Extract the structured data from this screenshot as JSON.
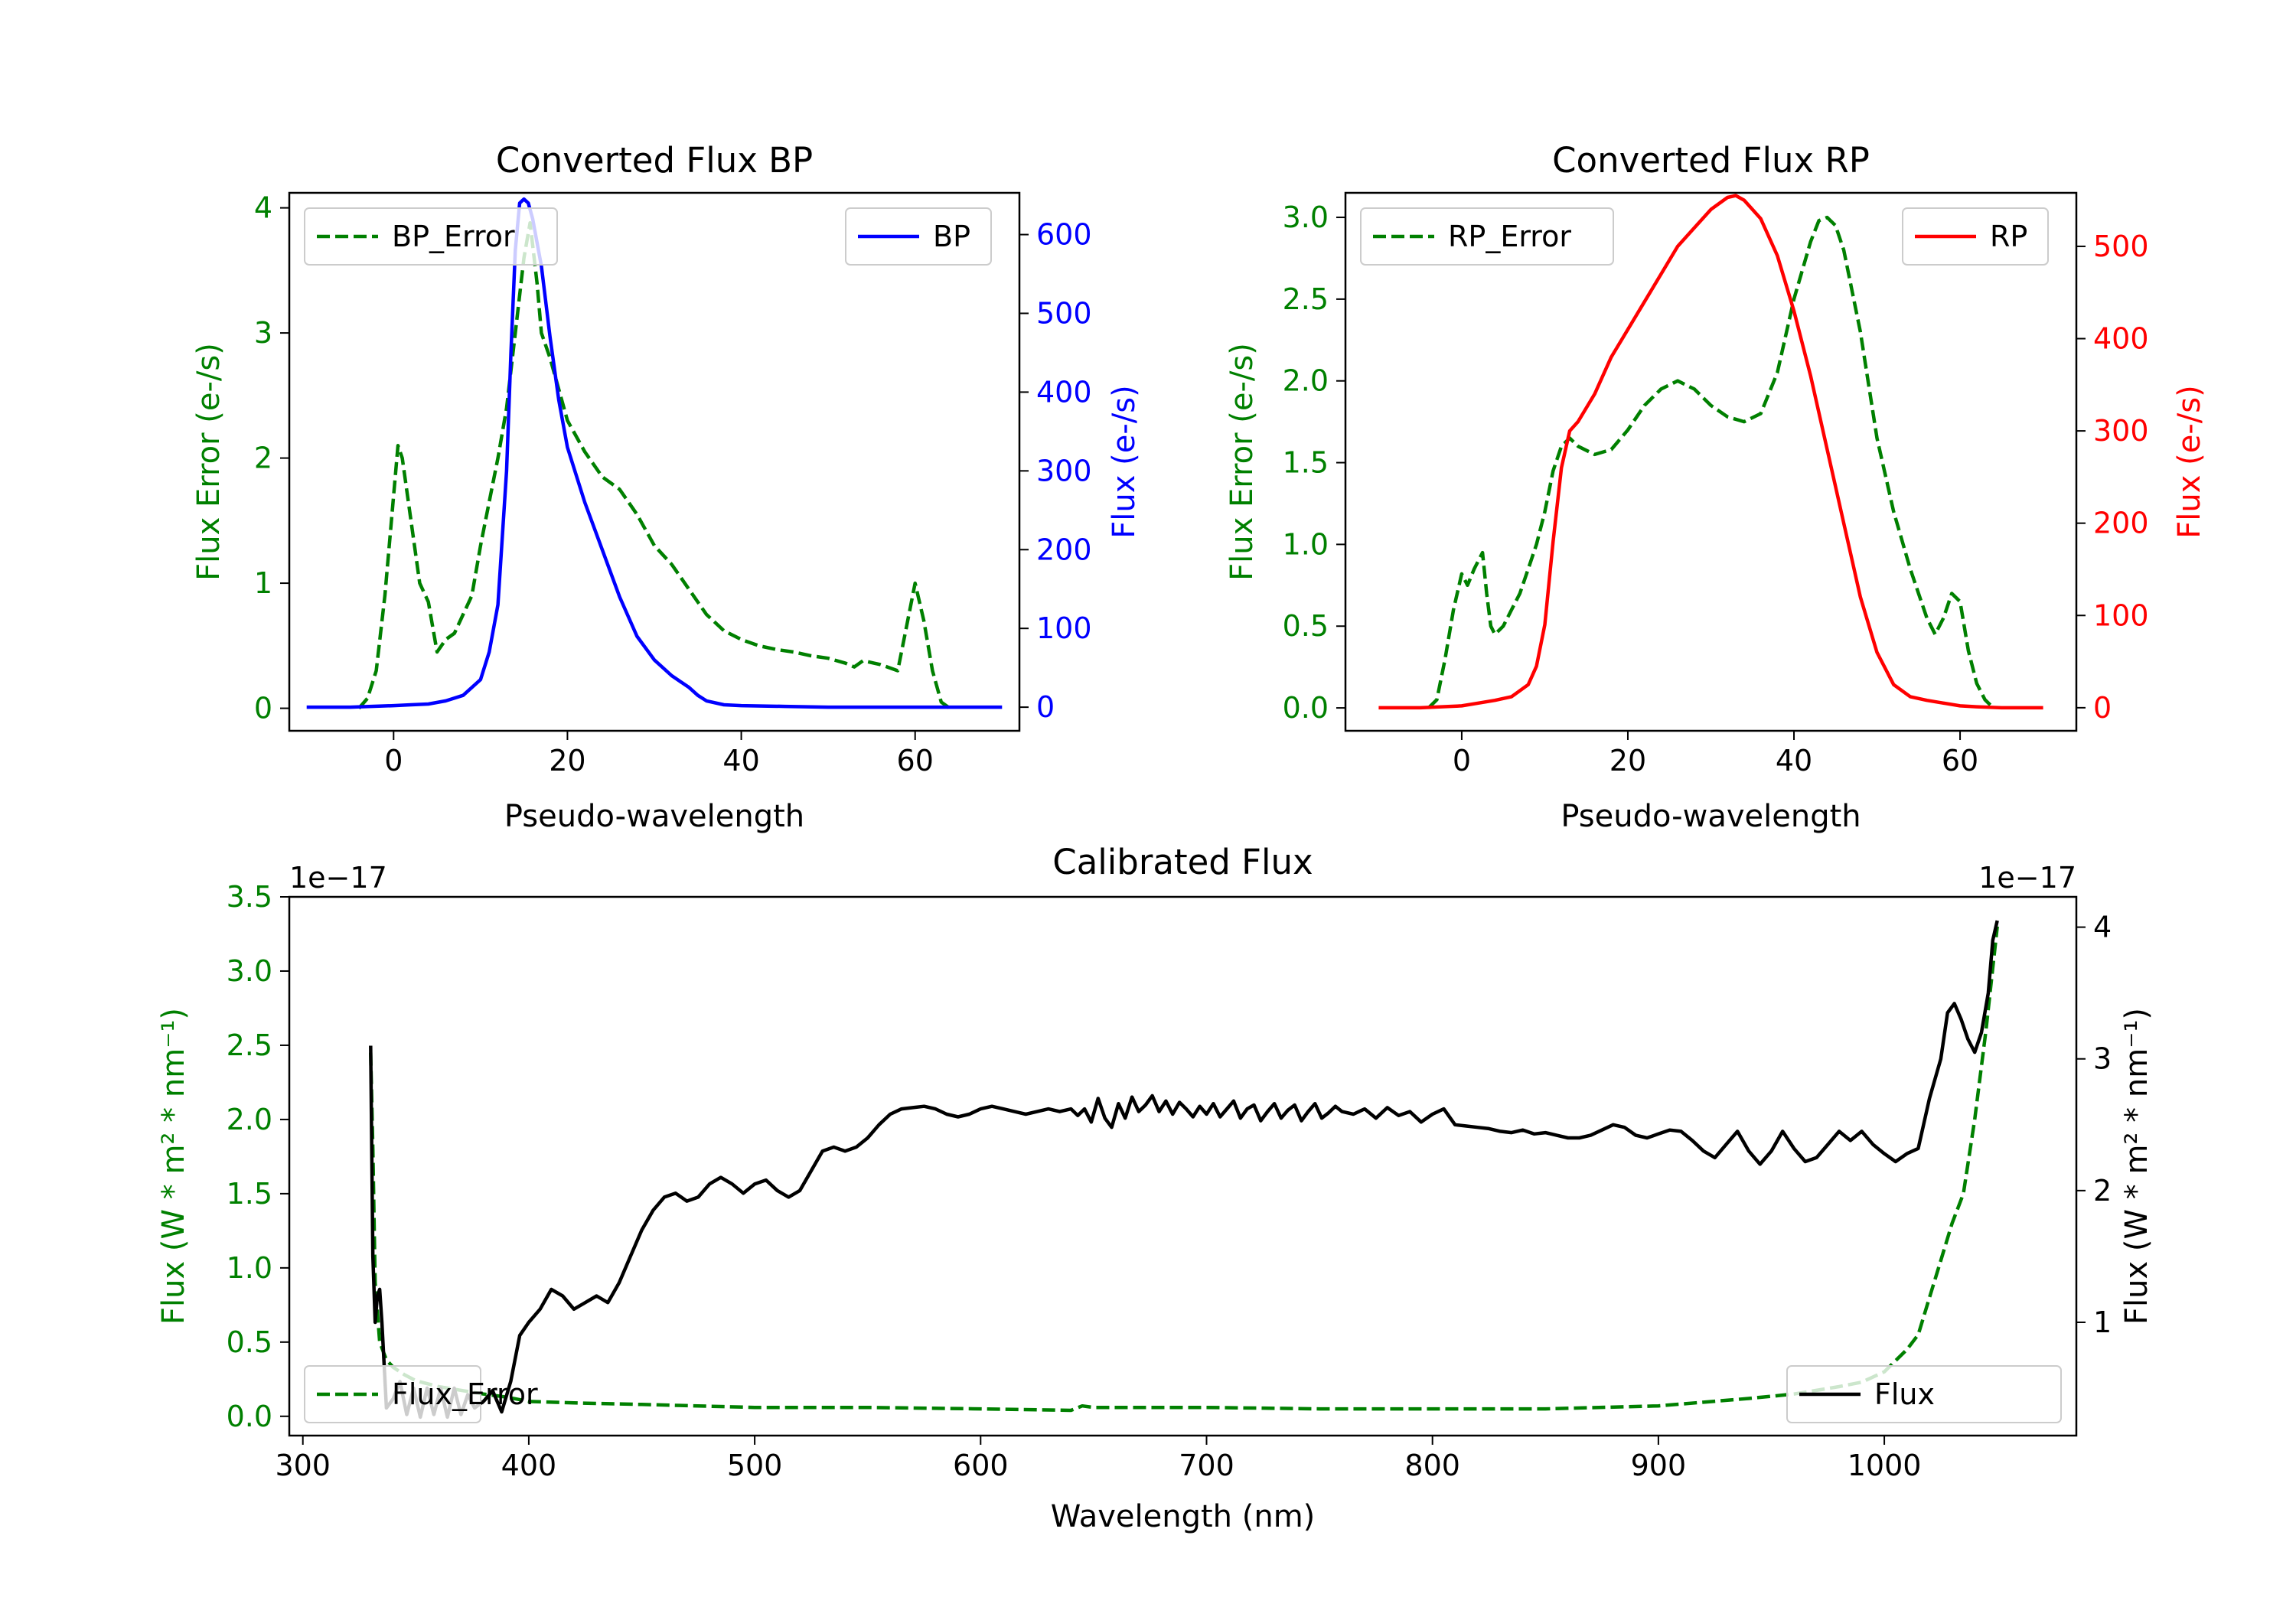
{
  "chart_data": [
    {
      "type": "line",
      "title": "Converted Flux BP",
      "xlabel": "Pseudo-wavelength",
      "ylabel_left": "Flux Error (e-/s)",
      "ylabel_right": "Flux (e-/s)",
      "xlim": [
        -12,
        72
      ],
      "ylim_left": [
        -0.18,
        4.12
      ],
      "ylim_right": [
        -30,
        653
      ],
      "xticks": [
        "0",
        "20",
        "40",
        "60"
      ],
      "yticks_left": [
        "0",
        "1",
        "2",
        "3",
        "4"
      ],
      "yticks_right": [
        "0",
        "100",
        "200",
        "300",
        "400",
        "500",
        "600"
      ],
      "series": [
        {
          "name": "BP_Error",
          "axis": "left",
          "style": "dashed",
          "color": "#008000",
          "x": [
            -4,
            -3,
            -2,
            -1,
            0,
            0.5,
            1,
            2,
            3,
            4,
            5,
            6,
            7,
            8,
            9,
            10,
            11,
            12,
            13,
            14,
            15,
            15.7,
            16.5,
            17,
            18,
            19,
            20,
            22,
            24,
            26,
            28,
            30,
            32,
            34,
            36,
            38,
            40,
            42,
            44,
            46,
            48,
            50,
            52,
            53,
            54,
            56,
            58,
            59,
            60,
            61,
            62,
            63,
            64
          ],
          "y": [
            0,
            0.08,
            0.3,
            0.9,
            1.7,
            2.1,
            2.0,
            1.5,
            1.0,
            0.85,
            0.45,
            0.55,
            0.6,
            0.75,
            0.9,
            1.3,
            1.65,
            2.0,
            2.4,
            3.0,
            3.6,
            3.88,
            3.4,
            3.0,
            2.8,
            2.55,
            2.3,
            2.05,
            1.85,
            1.75,
            1.55,
            1.3,
            1.15,
            0.95,
            0.75,
            0.62,
            0.55,
            0.5,
            0.47,
            0.45,
            0.42,
            0.4,
            0.36,
            0.33,
            0.38,
            0.35,
            0.3,
            0.65,
            1.0,
            0.7,
            0.3,
            0.05,
            0
          ]
        },
        {
          "name": "BP",
          "axis": "right",
          "style": "solid",
          "color": "#0000ff",
          "x": [
            -10,
            -5,
            0,
            2,
            4,
            6,
            8,
            10,
            11,
            12,
            13,
            13.5,
            14,
            14.5,
            15,
            15.5,
            16,
            17,
            18,
            19,
            20,
            22,
            24,
            26,
            28,
            30,
            32,
            34,
            35,
            36,
            38,
            40,
            45,
            50,
            55,
            60,
            65,
            70
          ],
          "y": [
            0,
            0,
            2,
            3,
            4,
            8,
            15,
            35,
            70,
            130,
            300,
            450,
            580,
            640,
            645,
            640,
            620,
            560,
            470,
            390,
            330,
            260,
            200,
            140,
            90,
            60,
            40,
            25,
            15,
            8,
            3,
            2,
            1,
            0,
            0,
            0,
            0,
            0
          ]
        }
      ]
    },
    {
      "type": "line",
      "title": "Converted Flux RP",
      "xlabel": "Pseudo-wavelength",
      "ylabel_left": "Flux Error (e-/s)",
      "ylabel_right": "Flux (e-/s)",
      "xlim": [
        -14,
        74
      ],
      "ylim_left": [
        -0.14,
        3.15
      ],
      "ylim_right": [
        -25,
        558
      ],
      "xticks": [
        "0",
        "20",
        "40",
        "60"
      ],
      "yticks_left": [
        "0.0",
        "0.5",
        "1.0",
        "1.5",
        "2.0",
        "2.5",
        "3.0"
      ],
      "yticks_right": [
        "0",
        "100",
        "200",
        "300",
        "400",
        "500"
      ],
      "series": [
        {
          "name": "RP_Error",
          "axis": "left",
          "style": "dashed",
          "color": "#008000",
          "x": [
            -4,
            -3,
            -2,
            -1,
            0,
            0.7,
            1.5,
            2.5,
            3,
            3.5,
            4,
            5,
            6,
            7,
            8,
            9,
            10,
            11,
            12,
            13,
            14,
            16,
            18,
            20,
            22,
            24,
            26,
            28,
            30,
            32,
            34,
            36,
            38,
            40,
            42,
            43,
            44,
            45,
            46,
            48,
            50,
            52,
            54,
            55,
            56,
            57,
            58,
            59,
            60,
            61,
            62,
            63,
            64
          ],
          "y": [
            0,
            0.05,
            0.3,
            0.6,
            0.82,
            0.75,
            0.85,
            0.95,
            0.7,
            0.5,
            0.45,
            0.5,
            0.6,
            0.7,
            0.85,
            1.0,
            1.2,
            1.45,
            1.6,
            1.65,
            1.6,
            1.55,
            1.58,
            1.7,
            1.85,
            1.95,
            2.0,
            1.95,
            1.85,
            1.78,
            1.75,
            1.8,
            2.05,
            2.5,
            2.85,
            2.98,
            3.0,
            2.95,
            2.8,
            2.3,
            1.65,
            1.2,
            0.85,
            0.7,
            0.55,
            0.45,
            0.55,
            0.7,
            0.65,
            0.35,
            0.15,
            0.05,
            0
          ]
        },
        {
          "name": "RP",
          "axis": "right",
          "style": "solid",
          "color": "#ff0000",
          "x": [
            -10,
            -5,
            0,
            2,
            4,
            6,
            8,
            9,
            10,
            11,
            12,
            13,
            14,
            16,
            18,
            20,
            22,
            24,
            26,
            28,
            30,
            32,
            33,
            34,
            36,
            38,
            40,
            42,
            44,
            46,
            48,
            50,
            52,
            54,
            56,
            58,
            60,
            62,
            65,
            70
          ],
          "y": [
            0,
            0,
            2,
            5,
            8,
            12,
            25,
            45,
            90,
            180,
            260,
            300,
            310,
            340,
            380,
            410,
            440,
            470,
            500,
            520,
            540,
            553,
            555,
            550,
            530,
            490,
            430,
            360,
            280,
            200,
            120,
            60,
            25,
            12,
            8,
            5,
            2,
            1,
            0,
            0
          ]
        }
      ]
    },
    {
      "type": "line",
      "title": "Calibrated Flux",
      "xlabel": "Wavelength (nm)",
      "ylabel_left": "Flux (W * m² * nm⁻¹)",
      "ylabel_right": "Flux (W * m² * nm⁻¹)",
      "offset_left": "1e−17",
      "offset_right": "1e−17",
      "xlim": [
        294,
        1085
      ],
      "ylim_left": [
        -0.13,
        3.5
      ],
      "ylim_right": [
        0.14,
        4.23
      ],
      "xticks": [
        "300",
        "400",
        "500",
        "600",
        "700",
        "800",
        "900",
        "1000"
      ],
      "yticks_left": [
        "0.0",
        "0.5",
        "1.0",
        "1.5",
        "2.0",
        "2.5",
        "3.0",
        "3.5"
      ],
      "yticks_right": [
        "1",
        "2",
        "3",
        "4"
      ],
      "series": [
        {
          "name": "Flux_Error",
          "axis": "left",
          "style": "dashed",
          "color": "#008000",
          "x": [
            330,
            331,
            332,
            334,
            337,
            340,
            345,
            350,
            360,
            380,
            390,
            400,
            420,
            450,
            500,
            550,
            600,
            640,
            645,
            650,
            700,
            750,
            800,
            850,
            900,
            940,
            960,
            980,
            990,
            1000,
            1010,
            1015,
            1020,
            1025,
            1030,
            1035,
            1040,
            1045,
            1050
          ],
          "y": [
            2.45,
            1.8,
            0.9,
            0.5,
            0.38,
            0.33,
            0.28,
            0.24,
            0.2,
            0.15,
            0.13,
            0.1,
            0.09,
            0.08,
            0.06,
            0.06,
            0.05,
            0.04,
            0.07,
            0.06,
            0.06,
            0.05,
            0.05,
            0.05,
            0.07,
            0.12,
            0.15,
            0.2,
            0.23,
            0.3,
            0.45,
            0.55,
            0.8,
            1.05,
            1.3,
            1.5,
            2.0,
            2.6,
            3.3
          ]
        },
        {
          "name": "Flux",
          "axis": "right",
          "style": "solid",
          "color": "#000000",
          "x": [
            330,
            331,
            332,
            333,
            334,
            335,
            337,
            340,
            343,
            346,
            349,
            352,
            355,
            358,
            361,
            364,
            367,
            370,
            373,
            376,
            380,
            384,
            388,
            392,
            396,
            400,
            405,
            410,
            415,
            420,
            425,
            430,
            435,
            440,
            445,
            450,
            455,
            460,
            465,
            470,
            475,
            480,
            485,
            490,
            495,
            500,
            505,
            510,
            515,
            520,
            525,
            530,
            535,
            540,
            545,
            550,
            555,
            560,
            565,
            570,
            575,
            580,
            585,
            590,
            595,
            600,
            605,
            610,
            615,
            620,
            625,
            630,
            635,
            640,
            643,
            646,
            649,
            652,
            655,
            658,
            661,
            664,
            667,
            670,
            673,
            676,
            679,
            682,
            685,
            688,
            691,
            694,
            697,
            700,
            703,
            706,
            709,
            712,
            715,
            718,
            721,
            724,
            727,
            730,
            733,
            736,
            739,
            742,
            745,
            748,
            751,
            754,
            757,
            760,
            765,
            770,
            775,
            780,
            785,
            790,
            795,
            800,
            805,
            810,
            815,
            820,
            825,
            830,
            835,
            840,
            845,
            850,
            855,
            860,
            865,
            870,
            875,
            880,
            885,
            890,
            895,
            900,
            905,
            910,
            915,
            920,
            925,
            930,
            935,
            940,
            945,
            950,
            955,
            960,
            965,
            970,
            975,
            980,
            985,
            990,
            995,
            1000,
            1005,
            1010,
            1015,
            1020,
            1025,
            1028,
            1031,
            1034,
            1037,
            1040,
            1043,
            1046,
            1048,
            1050
          ],
          "y": [
            3.1,
            1.5,
            1.0,
            1.2,
            1.25,
            1.0,
            0.35,
            0.42,
            0.55,
            0.3,
            0.5,
            0.28,
            0.5,
            0.3,
            0.5,
            0.28,
            0.5,
            0.3,
            0.45,
            0.35,
            0.4,
            0.48,
            0.32,
            0.55,
            0.9,
            1.0,
            1.1,
            1.25,
            1.2,
            1.1,
            1.15,
            1.2,
            1.15,
            1.3,
            1.5,
            1.7,
            1.85,
            1.95,
            1.98,
            1.92,
            1.95,
            2.05,
            2.1,
            2.05,
            1.98,
            2.05,
            2.08,
            2.0,
            1.95,
            2.0,
            2.15,
            2.3,
            2.33,
            2.3,
            2.33,
            2.4,
            2.5,
            2.58,
            2.62,
            2.63,
            2.64,
            2.62,
            2.58,
            2.56,
            2.58,
            2.62,
            2.64,
            2.62,
            2.6,
            2.58,
            2.6,
            2.62,
            2.6,
            2.62,
            2.57,
            2.62,
            2.52,
            2.7,
            2.55,
            2.48,
            2.66,
            2.55,
            2.71,
            2.6,
            2.65,
            2.72,
            2.6,
            2.68,
            2.58,
            2.67,
            2.62,
            2.56,
            2.64,
            2.58,
            2.66,
            2.56,
            2.62,
            2.68,
            2.55,
            2.62,
            2.65,
            2.53,
            2.6,
            2.66,
            2.55,
            2.61,
            2.65,
            2.53,
            2.6,
            2.66,
            2.55,
            2.59,
            2.64,
            2.6,
            2.58,
            2.62,
            2.55,
            2.63,
            2.57,
            2.6,
            2.52,
            2.58,
            2.62,
            2.5,
            2.49,
            2.48,
            2.47,
            2.45,
            2.44,
            2.46,
            2.43,
            2.44,
            2.42,
            2.4,
            2.4,
            2.42,
            2.46,
            2.5,
            2.48,
            2.42,
            2.4,
            2.43,
            2.46,
            2.45,
            2.38,
            2.3,
            2.25,
            2.35,
            2.45,
            2.3,
            2.2,
            2.3,
            2.45,
            2.32,
            2.22,
            2.25,
            2.35,
            2.45,
            2.38,
            2.45,
            2.35,
            2.28,
            2.22,
            2.28,
            2.32,
            2.7,
            3.0,
            3.35,
            3.42,
            3.3,
            3.15,
            3.05,
            3.2,
            3.5,
            3.9,
            4.05
          ]
        }
      ]
    }
  ]
}
